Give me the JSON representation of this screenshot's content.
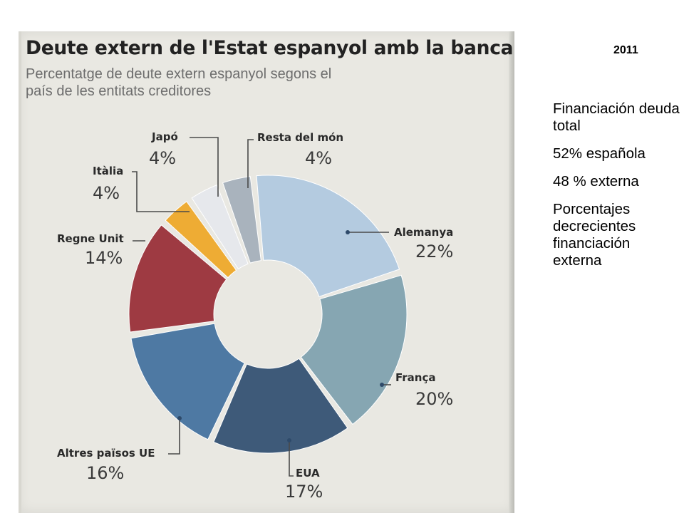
{
  "chart_data": {
    "type": "pie",
    "style": "donut",
    "title": "Deute extern de l'Estat espanyol amb la banca",
    "subtitle": "Percentatge de deute extern espanyol segons el país de les entitats creditores",
    "slices": [
      {
        "label": "Alemanya",
        "value": 22,
        "value_label": "22%",
        "color": "#b4cbe0"
      },
      {
        "label": "França",
        "value": 20,
        "value_label": "20%",
        "color": "#86a6b2"
      },
      {
        "label": "EUA",
        "value": 17,
        "value_label": "17%",
        "color": "#3e5a79"
      },
      {
        "label": "Altres països UE",
        "value": 16,
        "value_label": "16%",
        "color": "#4e79a3"
      },
      {
        "label": "Regne Unit",
        "value": 14,
        "value_label": "14%",
        "color": "#9e3a42"
      },
      {
        "label": "Itàlia",
        "value": 4,
        "value_label": "4%",
        "color": "#eeac34"
      },
      {
        "label": "Japó",
        "value": 4,
        "value_label": "4%",
        "color": "#e6e8ec"
      },
      {
        "label": "Resta del món",
        "value": 4,
        "value_label": "4%",
        "color": "#a9b3bd"
      }
    ]
  },
  "sidebar": {
    "year": "2011",
    "notes": [
      "Financiación deuda total",
      "52% española",
      "48 % externa",
      "Porcentajes decrecientes financiación externa"
    ]
  }
}
